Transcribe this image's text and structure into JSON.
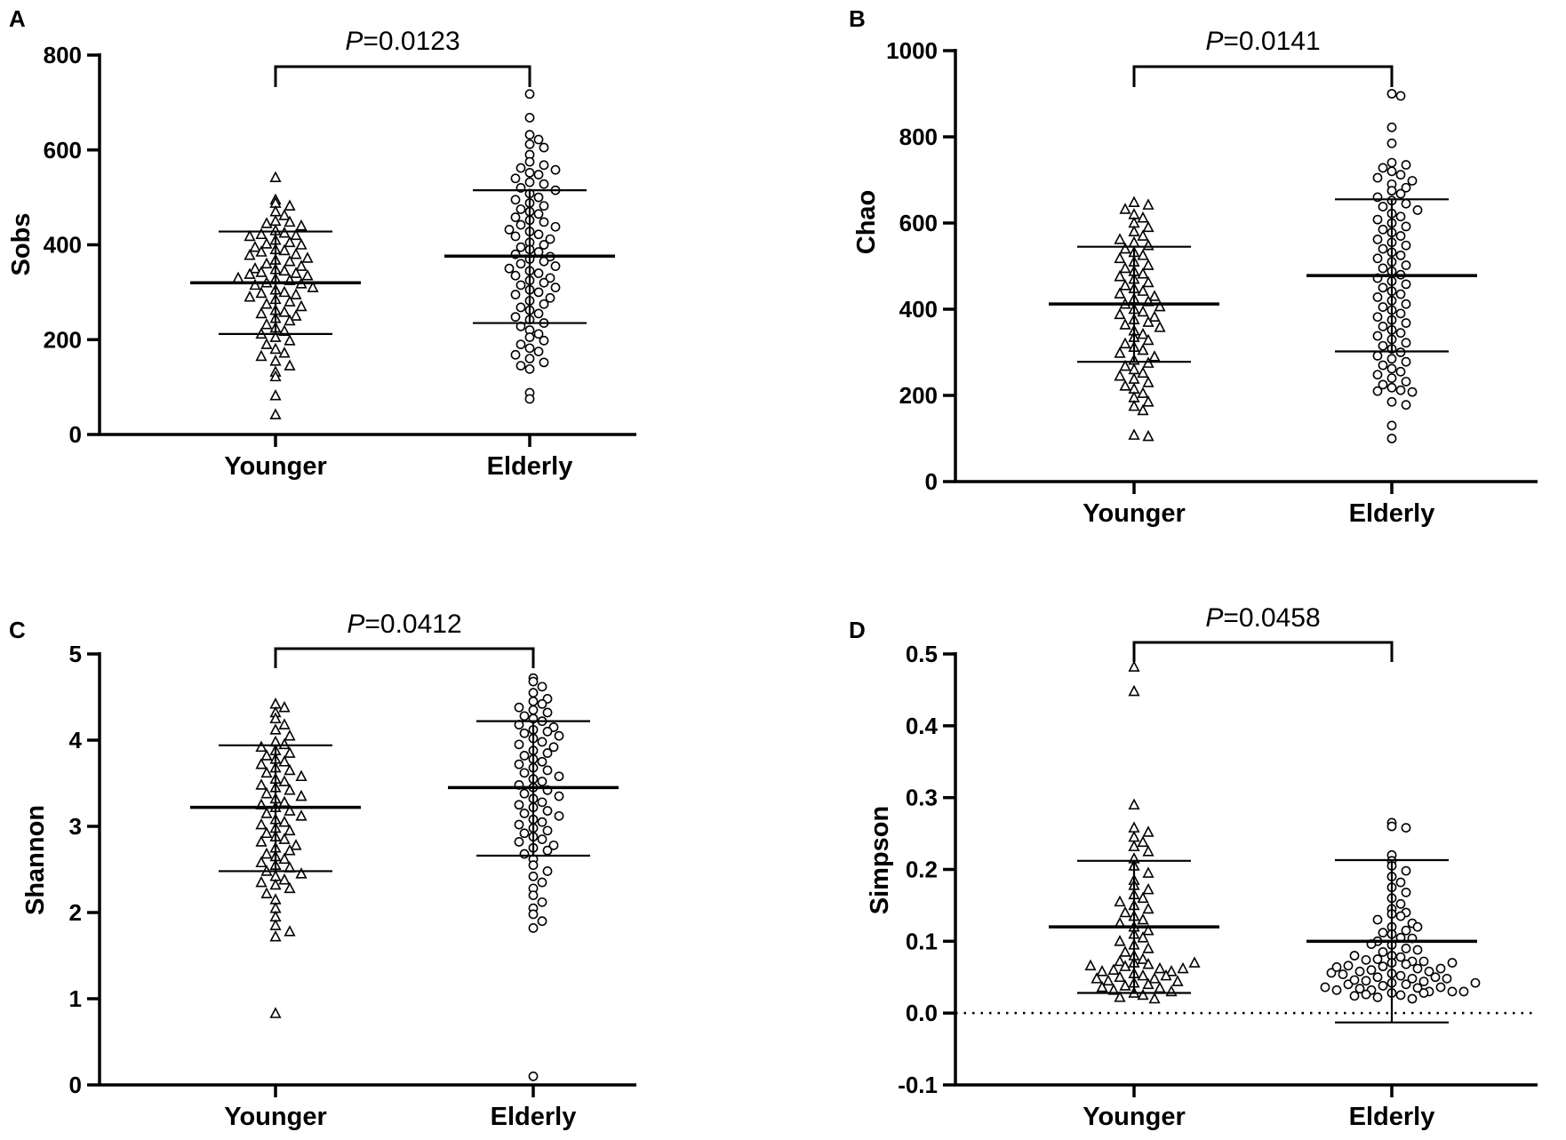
{
  "chart_data": [
    {
      "type": "scatter",
      "panel": "A",
      "ylabel": "Sobs",
      "ylim": [
        0,
        800
      ],
      "yticks": [
        0,
        200,
        400,
        600,
        800
      ],
      "categories": [
        "Younger",
        "Elderly"
      ],
      "p_value": {
        "italic": "P",
        "rest": "=0.0123"
      },
      "series": [
        {
          "name": "Younger",
          "marker": "triangle",
          "mean": 320,
          "sd_low": 212,
          "sd_high": 428,
          "values": [
            542,
            495,
            488,
            482,
            470,
            462,
            450,
            448,
            445,
            440,
            430,
            425,
            422,
            420,
            418,
            410,
            405,
            402,
            400,
            395,
            390,
            388,
            385,
            380,
            378,
            372,
            368,
            365,
            360,
            355,
            350,
            348,
            345,
            342,
            340,
            338,
            335,
            330,
            328,
            325,
            320,
            318,
            315,
            310,
            305,
            300,
            298,
            295,
            290,
            285,
            280,
            275,
            270,
            262,
            258,
            255,
            250,
            245,
            240,
            232,
            225,
            218,
            212,
            205,
            198,
            190,
            180,
            172,
            165,
            155,
            145,
            132,
            122,
            82,
            42
          ]
        },
        {
          "name": "Elderly",
          "marker": "circle",
          "mean": 376,
          "sd_low": 235,
          "sd_high": 515,
          "values": [
            718,
            668,
            632,
            622,
            612,
            605,
            590,
            575,
            568,
            562,
            558,
            552,
            548,
            540,
            532,
            528,
            520,
            515,
            508,
            500,
            495,
            488,
            482,
            475,
            470,
            465,
            458,
            452,
            448,
            442,
            438,
            432,
            428,
            422,
            418,
            412,
            405,
            400,
            395,
            390,
            385,
            380,
            375,
            370,
            365,
            360,
            355,
            350,
            345,
            340,
            335,
            330,
            325,
            320,
            315,
            310,
            305,
            300,
            295,
            288,
            282,
            275,
            268,
            262,
            255,
            248,
            242,
            235,
            228,
            220,
            212,
            205,
            198,
            190,
            182,
            175,
            168,
            160,
            152,
            145,
            138,
            88,
            75
          ]
        }
      ]
    },
    {
      "type": "scatter",
      "panel": "B",
      "ylabel": "Chao",
      "ylim": [
        0,
        1000
      ],
      "yticks": [
        0,
        200,
        400,
        600,
        800,
        1000
      ],
      "categories": [
        "Younger",
        "Elderly"
      ],
      "p_value": {
        "italic": "P",
        "rest": "=0.0141"
      },
      "series": [
        {
          "name": "Younger",
          "marker": "triangle",
          "mean": 412,
          "sd_low": 278,
          "sd_high": 545,
          "values": [
            648,
            642,
            632,
            620,
            612,
            600,
            590,
            580,
            570,
            562,
            555,
            548,
            540,
            532,
            525,
            518,
            510,
            502,
            495,
            488,
            482,
            476,
            470,
            462,
            455,
            448,
            442,
            436,
            430,
            424,
            418,
            412,
            406,
            400,
            394,
            388,
            382,
            376,
            370,
            364,
            358,
            350,
            342,
            335,
            328,
            320,
            312,
            305,
            298,
            290,
            282,
            275,
            268,
            260,
            252,
            245,
            238,
            230,
            222,
            215,
            205,
            195,
            185,
            175,
            165,
            108,
            105
          ]
        },
        {
          "name": "Elderly",
          "marker": "circle",
          "mean": 478,
          "sd_low": 302,
          "sd_high": 655,
          "values": [
            900,
            895,
            822,
            785,
            740,
            735,
            728,
            720,
            712,
            705,
            698,
            690,
            682,
            675,
            668,
            660,
            652,
            645,
            638,
            630,
            622,
            615,
            608,
            600,
            592,
            585,
            578,
            570,
            562,
            555,
            548,
            540,
            532,
            525,
            518,
            510,
            502,
            495,
            488,
            480,
            472,
            465,
            458,
            450,
            442,
            435,
            428,
            420,
            412,
            405,
            398,
            390,
            382,
            375,
            368,
            360,
            352,
            345,
            338,
            330,
            322,
            315,
            308,
            300,
            292,
            285,
            278,
            270,
            262,
            255,
            248,
            240,
            232,
            225,
            218,
            212,
            210,
            208,
            185,
            178,
            130,
            100
          ]
        }
      ]
    },
    {
      "type": "scatter",
      "panel": "C",
      "ylabel": "Shannon",
      "ylim": [
        0,
        5
      ],
      "yticks": [
        0,
        1,
        2,
        3,
        4,
        5
      ],
      "categories": [
        "Younger",
        "Elderly"
      ],
      "p_value": {
        "italic": "P",
        "rest": "=0.0412"
      },
      "series": [
        {
          "name": "Younger",
          "marker": "triangle",
          "mean": 3.22,
          "sd_low": 2.48,
          "sd_high": 3.94,
          "values": [
            4.42,
            4.38,
            4.32,
            4.25,
            4.18,
            4.12,
            4.05,
            3.98,
            3.95,
            3.92,
            3.88,
            3.85,
            3.82,
            3.78,
            3.75,
            3.72,
            3.68,
            3.65,
            3.62,
            3.58,
            3.55,
            3.52,
            3.48,
            3.45,
            3.42,
            3.38,
            3.35,
            3.32,
            3.28,
            3.25,
            3.22,
            3.18,
            3.15,
            3.12,
            3.08,
            3.05,
            3.02,
            2.98,
            2.95,
            2.92,
            2.88,
            2.85,
            2.82,
            2.78,
            2.75,
            2.72,
            2.68,
            2.65,
            2.62,
            2.58,
            2.55,
            2.52,
            2.48,
            2.45,
            2.42,
            2.38,
            2.35,
            2.32,
            2.28,
            2.22,
            2.15,
            2.05,
            1.95,
            1.85,
            1.78,
            1.72,
            0.83
          ]
        },
        {
          "name": "Elderly",
          "marker": "circle",
          "mean": 3.45,
          "sd_low": 2.66,
          "sd_high": 4.22,
          "values": [
            4.72,
            4.68,
            4.62,
            4.55,
            4.48,
            4.45,
            4.42,
            4.38,
            4.35,
            4.32,
            4.28,
            4.25,
            4.22,
            4.18,
            4.15,
            4.12,
            4.1,
            4.08,
            4.05,
            4.02,
            3.98,
            3.95,
            3.92,
            3.88,
            3.85,
            3.82,
            3.78,
            3.75,
            3.72,
            3.68,
            3.65,
            3.62,
            3.58,
            3.55,
            3.52,
            3.48,
            3.45,
            3.42,
            3.38,
            3.35,
            3.32,
            3.28,
            3.25,
            3.22,
            3.18,
            3.15,
            3.12,
            3.08,
            3.05,
            3.02,
            2.98,
            2.95,
            2.92,
            2.88,
            2.85,
            2.82,
            2.78,
            2.75,
            2.72,
            2.68,
            2.62,
            2.55,
            2.48,
            2.42,
            2.35,
            2.28,
            2.2,
            2.12,
            2.05,
            1.98,
            1.9,
            1.82,
            0.1
          ]
        }
      ]
    },
    {
      "type": "scatter",
      "panel": "D",
      "ylabel": "Simpson",
      "ylim": [
        -0.1,
        0.5
      ],
      "yticks": [
        -0.1,
        0.0,
        0.1,
        0.2,
        0.3,
        0.4,
        0.5
      ],
      "ytick_labels": [
        "-0.1",
        "0.0",
        "0.1",
        "0.2",
        "0.3",
        "0.4",
        "0.5"
      ],
      "zero_line": "dotted",
      "categories": [
        "Younger",
        "Elderly"
      ],
      "p_value": {
        "italic": "P",
        "rest": "=0.0458"
      },
      "series": [
        {
          "name": "Younger",
          "marker": "triangle",
          "mean": 0.12,
          "sd_low": 0.028,
          "sd_high": 0.212,
          "values": [
            0.482,
            0.448,
            0.29,
            0.258,
            0.252,
            0.245,
            0.238,
            0.232,
            0.225,
            0.215,
            0.205,
            0.195,
            0.185,
            0.178,
            0.172,
            0.165,
            0.16,
            0.155,
            0.15,
            0.145,
            0.14,
            0.135,
            0.13,
            0.125,
            0.12,
            0.115,
            0.11,
            0.105,
            0.1,
            0.095,
            0.09,
            0.085,
            0.08,
            0.075,
            0.072,
            0.07,
            0.068,
            0.065,
            0.062,
            0.06,
            0.058,
            0.055,
            0.052,
            0.05,
            0.048,
            0.045,
            0.042,
            0.04,
            0.038,
            0.035,
            0.032,
            0.03,
            0.028,
            0.025,
            0.022,
            0.02,
            0.052,
            0.058,
            0.062,
            0.048,
            0.044,
            0.036,
            0.066,
            0.07
          ]
        },
        {
          "name": "Elderly",
          "marker": "circle",
          "mean": 0.1,
          "sd_low": -0.013,
          "sd_high": 0.213,
          "values": [
            0.265,
            0.26,
            0.258,
            0.22,
            0.212,
            0.205,
            0.198,
            0.19,
            0.182,
            0.175,
            0.168,
            0.16,
            0.152,
            0.145,
            0.14,
            0.138,
            0.135,
            0.13,
            0.125,
            0.12,
            0.115,
            0.11,
            0.105,
            0.1,
            0.095,
            0.09,
            0.085,
            0.08,
            0.078,
            0.075,
            0.072,
            0.07,
            0.068,
            0.065,
            0.062,
            0.06,
            0.058,
            0.055,
            0.052,
            0.05,
            0.048,
            0.045,
            0.042,
            0.04,
            0.038,
            0.035,
            0.032,
            0.03,
            0.028,
            0.025,
            0.022,
            0.02,
            0.034,
            0.036,
            0.04,
            0.044,
            0.046,
            0.05,
            0.054,
            0.058,
            0.062,
            0.066,
            0.07,
            0.074,
            0.03,
            0.032,
            0.026,
            0.028,
            0.024,
            0.03,
            0.036,
            0.042,
            0.048,
            0.056,
            0.064,
            0.072,
            0.08,
            0.088,
            0.096,
            0.104,
            0.112,
            0.12
          ]
        }
      ]
    }
  ]
}
